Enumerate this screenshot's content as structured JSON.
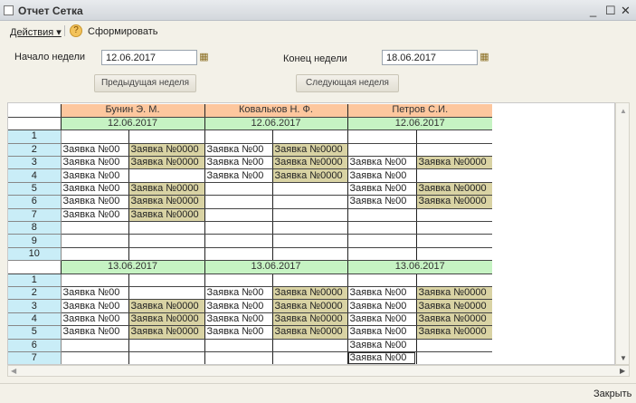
{
  "window": {
    "title": "Отчет  Сетка",
    "minimize": "_",
    "maximize": "☐",
    "close": "✕"
  },
  "toolbar": {
    "actions": "Действия ▾",
    "help": "?",
    "generate": "Сформировать"
  },
  "form": {
    "start_label": "Начало недели",
    "start_value": "12.06.2017",
    "end_label": "Конец недели",
    "end_value": "18.06.2017",
    "prev_week": "Предыдущая неделя",
    "next_week": "Следующая неделя",
    "calendar_icon": "▦"
  },
  "grid": {
    "people": [
      "Бунин Э. М.",
      "Ковальков Н. Ф.",
      "Петров С.И."
    ],
    "blocks": [
      {
        "date": "12.06.2017",
        "rows": [
          [
            "1",
            [
              "",
              ""
            ],
            [
              "",
              ""
            ],
            [
              "",
              ""
            ]
          ],
          [
            "2",
            [
              "Заявка №00",
              "Заявка №0000"
            ],
            [
              "Заявка №00",
              "Заявка №0000"
            ],
            [
              "",
              ""
            ]
          ],
          [
            "3",
            [
              "Заявка №00",
              "Заявка №0000"
            ],
            [
              "Заявка №00",
              "Заявка №0000"
            ],
            [
              "Заявка №00",
              "Заявка №0000"
            ]
          ],
          [
            "4",
            [
              "Заявка №00",
              ""
            ],
            [
              "Заявка №00",
              "Заявка №0000"
            ],
            [
              "Заявка №00",
              ""
            ]
          ],
          [
            "5",
            [
              "Заявка №00",
              "Заявка №0000"
            ],
            [
              "",
              ""
            ],
            [
              "Заявка №00",
              "Заявка №0000"
            ]
          ],
          [
            "6",
            [
              "Заявка №00",
              "Заявка №0000"
            ],
            [
              "",
              ""
            ],
            [
              "Заявка №00",
              "Заявка №0000"
            ]
          ],
          [
            "7",
            [
              "Заявка №00",
              "Заявка №0000"
            ],
            [
              "",
              ""
            ],
            [
              "",
              ""
            ]
          ],
          [
            "8",
            [
              "",
              ""
            ],
            [
              "",
              ""
            ],
            [
              "",
              ""
            ]
          ],
          [
            "9",
            [
              "",
              ""
            ],
            [
              "",
              ""
            ],
            [
              "",
              ""
            ]
          ],
          [
            "10",
            [
              "",
              ""
            ],
            [
              "",
              ""
            ],
            [
              "",
              ""
            ]
          ]
        ]
      },
      {
        "date": "13.06.2017",
        "rows": [
          [
            "1",
            [
              "",
              ""
            ],
            [
              "",
              ""
            ],
            [
              "",
              ""
            ]
          ],
          [
            "2",
            [
              "Заявка №00",
              ""
            ],
            [
              "Заявка №00",
              "Заявка №0000"
            ],
            [
              "Заявка №00",
              "Заявка №0000"
            ]
          ],
          [
            "3",
            [
              "Заявка №00",
              "Заявка №0000"
            ],
            [
              "Заявка №00",
              "Заявка №0000"
            ],
            [
              "Заявка №00",
              "Заявка №0000"
            ]
          ],
          [
            "4",
            [
              "Заявка №00",
              "Заявка №0000"
            ],
            [
              "Заявка №00",
              "Заявка №0000"
            ],
            [
              "Заявка №00",
              "Заявка №0000"
            ]
          ],
          [
            "5",
            [
              "Заявка №00",
              "Заявка №0000"
            ],
            [
              "Заявка №00",
              "Заявка №0000"
            ],
            [
              "Заявка №00",
              "Заявка №0000"
            ]
          ],
          [
            "6",
            [
              "",
              ""
            ],
            [
              "",
              ""
            ],
            [
              "Заявка №00",
              ""
            ]
          ],
          [
            "7",
            [
              "",
              ""
            ],
            [
              "",
              ""
            ],
            [
              "Заявка №00",
              ""
            ]
          ]
        ]
      }
    ],
    "selected_cell": "13.06.2017 / Петров С.И. / 7",
    "colors": {
      "name_header": "#fdc79e",
      "date_header": "#c6f3c3",
      "row_number": "#c9edf7",
      "highlight": "#d9d3a4"
    }
  },
  "footer": {
    "close": "Закрыть"
  }
}
